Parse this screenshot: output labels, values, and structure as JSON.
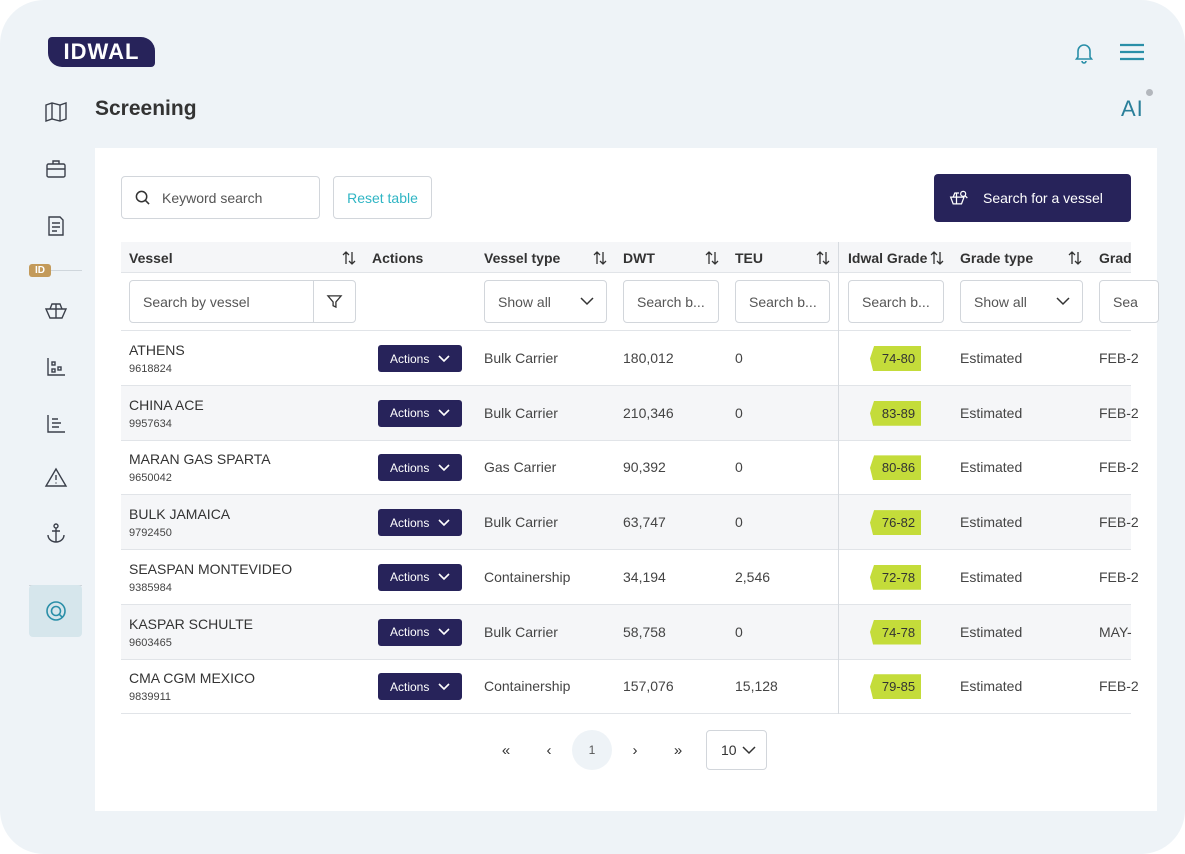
{
  "app": {
    "logo": "IDWAL",
    "ai_label": "AI"
  },
  "page": {
    "title": "Screening"
  },
  "sidebar": {
    "section_badge": "ID"
  },
  "toolbar": {
    "keyword_placeholder": "Keyword search",
    "reset_label": "Reset table",
    "search_vessel_label": "Search for a vessel"
  },
  "table": {
    "columns": [
      "Vessel",
      "Actions",
      "Vessel type",
      "DWT",
      "TEU",
      "Idwal Grade",
      "Grade type",
      "Grad"
    ],
    "filters": {
      "vessel_placeholder": "Search by vessel",
      "vessel_type": "Show all",
      "dwt_placeholder": "Search b...",
      "teu_placeholder": "Search b...",
      "grade_placeholder": "Search b...",
      "grade_type": "Show all",
      "grade_date_placeholder": "Sea"
    },
    "action_label": "Actions",
    "rows": [
      {
        "name": "ATHENS",
        "imo": "9618824",
        "type": "Bulk Carrier",
        "dwt": "180,012",
        "teu": "0",
        "grade": "74-80",
        "grade_type": "Estimated",
        "grade_date": "FEB-2"
      },
      {
        "name": "CHINA ACE",
        "imo": "9957634",
        "type": "Bulk Carrier",
        "dwt": "210,346",
        "teu": "0",
        "grade": "83-89",
        "grade_type": "Estimated",
        "grade_date": "FEB-2"
      },
      {
        "name": "MARAN GAS SPARTA",
        "imo": "9650042",
        "type": "Gas Carrier",
        "dwt": "90,392",
        "teu": "0",
        "grade": "80-86",
        "grade_type": "Estimated",
        "grade_date": "FEB-2"
      },
      {
        "name": "BULK JAMAICA",
        "imo": "9792450",
        "type": "Bulk Carrier",
        "dwt": "63,747",
        "teu": "0",
        "grade": "76-82",
        "grade_type": "Estimated",
        "grade_date": "FEB-2"
      },
      {
        "name": "SEASPAN MONTEVIDEO",
        "imo": "9385984",
        "type": "Containership",
        "dwt": "34,194",
        "teu": "2,546",
        "grade": "72-78",
        "grade_type": "Estimated",
        "grade_date": "FEB-2"
      },
      {
        "name": "KASPAR SCHULTE",
        "imo": "9603465",
        "type": "Bulk Carrier",
        "dwt": "58,758",
        "teu": "0",
        "grade": "74-78",
        "grade_type": "Estimated",
        "grade_date": "MAY-"
      },
      {
        "name": "CMA CGM MEXICO",
        "imo": "9839911",
        "type": "Containership",
        "dwt": "157,076",
        "teu": "15,128",
        "grade": "79-85",
        "grade_type": "Estimated",
        "grade_date": "FEB-2"
      }
    ]
  },
  "pagination": {
    "first": "«",
    "prev": "‹",
    "current": "1",
    "next": "›",
    "last": "»",
    "page_size": "10"
  },
  "colors": {
    "brand_navy": "#27235a",
    "accent_teal": "#2fb5c4",
    "grade_green": "#c4dc3a"
  }
}
